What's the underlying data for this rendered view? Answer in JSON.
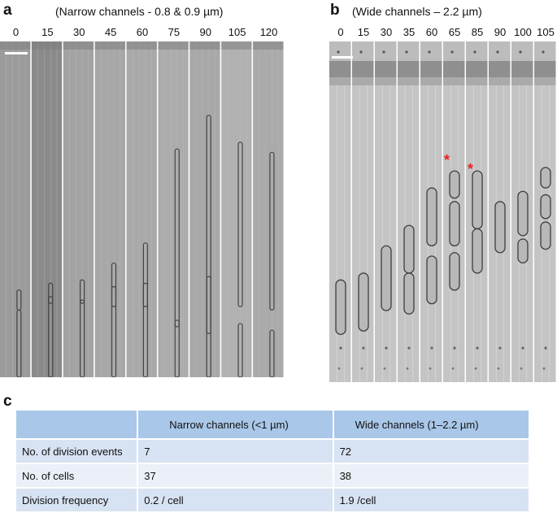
{
  "panel_a": {
    "letter": "a",
    "title": "(Narrow channels - 0.8 & 0.9 µm)",
    "time_points": [
      "0",
      "15",
      "30",
      "45",
      "60",
      "75",
      "90",
      "105",
      "120"
    ]
  },
  "panel_b": {
    "letter": "b",
    "title": "(Wide channels – 2.2 µm)",
    "time_points": [
      "0",
      "15",
      "30",
      "35",
      "60",
      "65",
      "85",
      "90",
      "100",
      "105"
    ],
    "markers": [
      "*",
      "*"
    ],
    "marker_color": "#e8231f"
  },
  "panel_c": {
    "letter": "c",
    "header": [
      "",
      "Narrow channels (<1 µm)",
      "Wide channels (1–2.2 µm)"
    ],
    "rows": [
      [
        "No. of division events",
        "7",
        "72"
      ],
      [
        "No. of cells",
        "37",
        "38"
      ],
      [
        "Division frequency",
        "0.2 / cell",
        "1.9 /cell"
      ]
    ],
    "header_color": "#a9c7e8",
    "row_color_dark": "#d7e2f2",
    "row_color_light": "#ebf0f8"
  }
}
